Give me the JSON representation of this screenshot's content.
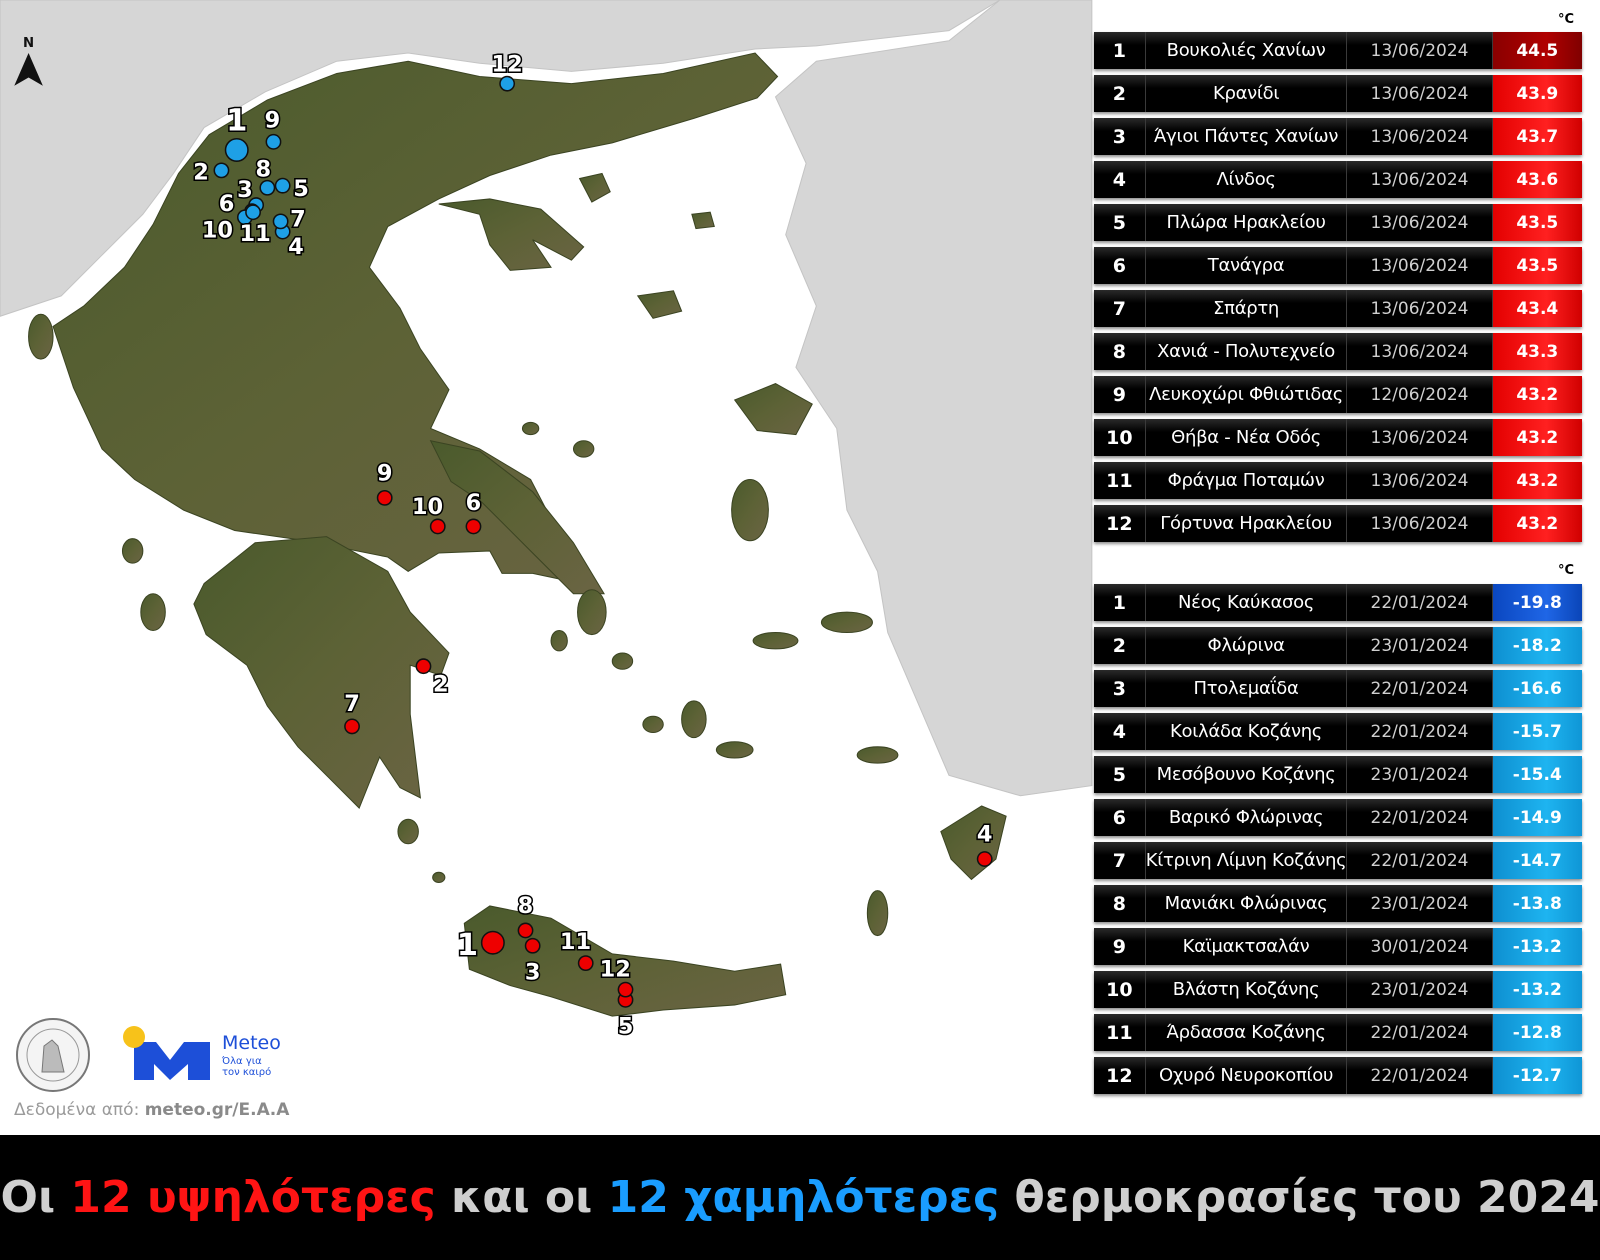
{
  "compass": {
    "label": "N"
  },
  "unit_label": "°C",
  "highest": {
    "color_top": "#b00000",
    "color": "#ff2020",
    "rows": [
      {
        "rank": "1",
        "station": "Βουκολιές Χανίων",
        "date": "13/06/2024",
        "value": "44.5"
      },
      {
        "rank": "2",
        "station": "Κρανίδι",
        "date": "13/06/2024",
        "value": "43.9"
      },
      {
        "rank": "3",
        "station": "Άγιοι Πάντες Χανίων",
        "date": "13/06/2024",
        "value": "43.7"
      },
      {
        "rank": "4",
        "station": "Λίνδος",
        "date": "13/06/2024",
        "value": "43.6"
      },
      {
        "rank": "5",
        "station": "Πλώρα Ηρακλείου",
        "date": "13/06/2024",
        "value": "43.5"
      },
      {
        "rank": "6",
        "station": "Τανάγρα",
        "date": "13/06/2024",
        "value": "43.5"
      },
      {
        "rank": "7",
        "station": "Σπάρτη",
        "date": "13/06/2024",
        "value": "43.4"
      },
      {
        "rank": "8",
        "station": "Χανιά - Πολυτεχνείο",
        "date": "13/06/2024",
        "value": "43.3"
      },
      {
        "rank": "9",
        "station": "Λευκοχώρι Φθιώτιδας",
        "date": "12/06/2024",
        "value": "43.2"
      },
      {
        "rank": "10",
        "station": "Θήβα - Νέα Οδός",
        "date": "13/06/2024",
        "value": "43.2"
      },
      {
        "rank": "11",
        "station": "Φράγμα Ποταμών",
        "date": "13/06/2024",
        "value": "43.2"
      },
      {
        "rank": "12",
        "station": "Γόρτυνα Ηρακλείου",
        "date": "13/06/2024",
        "value": "43.2"
      }
    ]
  },
  "lowest": {
    "color_top": "#1f66e6",
    "color": "#1eb4f0",
    "rows": [
      {
        "rank": "1",
        "station": "Νέος Καύκασος",
        "date": "22/01/2024",
        "value": "-19.8"
      },
      {
        "rank": "2",
        "station": "Φλώρινα",
        "date": "23/01/2024",
        "value": "-18.2"
      },
      {
        "rank": "3",
        "station": "Πτολεμαΐδα",
        "date": "22/01/2024",
        "value": "-16.6"
      },
      {
        "rank": "4",
        "station": "Κοιλάδα Κοζάνης",
        "date": "22/01/2024",
        "value": "-15.7"
      },
      {
        "rank": "5",
        "station": "Μεσόβουνο Κοζάνης",
        "date": "23/01/2024",
        "value": "-15.4"
      },
      {
        "rank": "6",
        "station": "Βαρικό Φλώρινας",
        "date": "22/01/2024",
        "value": "-14.9"
      },
      {
        "rank": "7",
        "station": "Κίτρινη Λίμνη Κοζάνης",
        "date": "22/01/2024",
        "value": "-14.7"
      },
      {
        "rank": "8",
        "station": "Μανιάκι Φλώρινας",
        "date": "23/01/2024",
        "value": "-13.8"
      },
      {
        "rank": "9",
        "station": "Καϊμακτσαλάν",
        "date": "30/01/2024",
        "value": "-13.2"
      },
      {
        "rank": "10",
        "station": "Βλάστη Κοζάνης",
        "date": "23/01/2024",
        "value": "-13.2"
      },
      {
        "rank": "11",
        "station": "Άρδασσα Κοζάνης",
        "date": "22/01/2024",
        "value": "-12.8"
      },
      {
        "rank": "12",
        "station": "Οχυρό Νευροκοπίου",
        "date": "22/01/2024",
        "value": "-12.7"
      }
    ]
  },
  "map_markers": {
    "high_color": "#ee0000",
    "low_color": "#1ea0e6",
    "high_ranks": [
      "1",
      "2",
      "3",
      "4",
      "5",
      "6",
      "7",
      "8",
      "9",
      "10",
      "11",
      "12"
    ],
    "low_ranks": [
      "1",
      "2",
      "3",
      "4",
      "5",
      "6",
      "7",
      "8",
      "9",
      "10",
      "11",
      "12"
    ]
  },
  "logos": {
    "meteo_name": "Meteo",
    "meteo_tagline_1": "Όλα για",
    "meteo_tagline_2": "τον καιρό",
    "observatory_seal": "ΕΘΝΙΚΟΝ ΑΣΤΕΡΟΣΚΟΠΕΙΟΝ ΑΘΗΝΩΝ · NATIONAL OBSERVATORY OF ATHENS"
  },
  "source": {
    "prefix": "Δεδομένα από: ",
    "name": "meteo.gr/Ε.Α.Α"
  },
  "banner": {
    "part1": "Οι ",
    "high": "12 υψηλότερες",
    "part2": " και οι ",
    "low": "12 χαμηλότερες",
    "part3": " θερμοκρασίες του 2024"
  }
}
